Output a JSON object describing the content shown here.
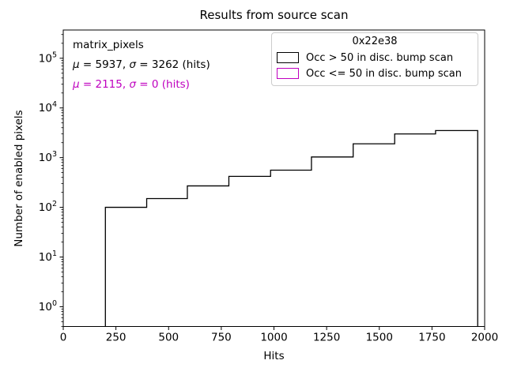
{
  "title": "Results from source scan",
  "annotation": {
    "dataset_label": "matrix_pixels",
    "stats_line_black": "μ = 5937, σ = 3262 (hits)",
    "stats_line_magenta": "μ = 2115, σ = 0 (hits)",
    "magenta_color": "#bf00bf"
  },
  "legend": {
    "title": "0x22e38",
    "entries": [
      {
        "label": "Occ > 50 in disc. bump scan",
        "color": "#000000"
      },
      {
        "label": "Occ <= 50 in disc. bump scan",
        "color": "#bf00bf"
      }
    ]
  },
  "chart_data": {
    "type": "bar",
    "subtype": "step-histogram",
    "title": "Results from source scan",
    "xlabel": "Hits",
    "ylabel": "Number of enabled pixels",
    "xlim": [
      0,
      2000
    ],
    "ylim": [
      0.4,
      370000
    ],
    "yscale": "log",
    "grid": false,
    "legend_position": "upper right",
    "xticks": [
      0,
      250,
      500,
      750,
      1000,
      1250,
      1500,
      1750,
      2000
    ],
    "ytick_exponents": [
      0,
      1,
      2,
      3,
      4,
      5
    ],
    "series": [
      {
        "name": "Occ > 50 in disc. bump scan",
        "color": "#000000",
        "bin_edges": [
          200,
          396,
          589,
          786,
          984,
          1178,
          1376,
          1573,
          1767,
          1967
        ],
        "counts": [
          100,
          150,
          270,
          420,
          560,
          1030,
          1900,
          3000,
          3500
        ]
      },
      {
        "name": "Occ <= 50 in disc. bump scan",
        "color": "#bf00bf",
        "bin_edges": [],
        "counts": [],
        "visible_in_range": false
      }
    ]
  }
}
